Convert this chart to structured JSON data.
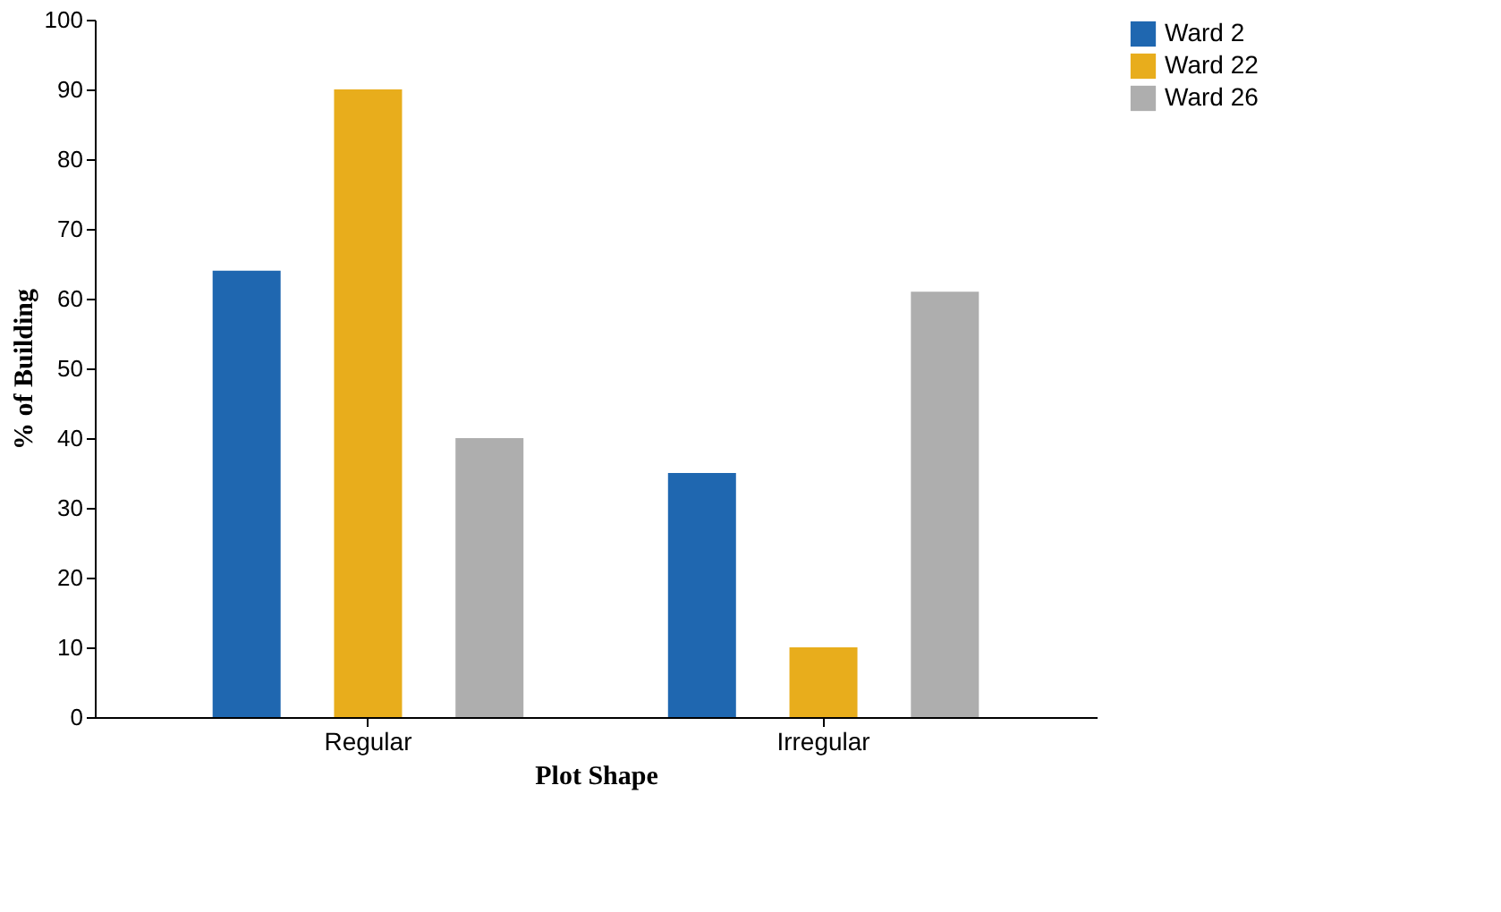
{
  "chart_data": {
    "type": "bar",
    "xlabel": "Plot Shape",
    "ylabel": "% of Building",
    "categories": [
      "Regular",
      "Irregular"
    ],
    "series": [
      {
        "name": "Ward 2",
        "color": "#1f67b0",
        "values": [
          64,
          35
        ]
      },
      {
        "name": "Ward 22",
        "color": "#e8ad1c",
        "values": [
          90,
          10
        ]
      },
      {
        "name": "Ward 26",
        "color": "#aeaeae",
        "values": [
          40,
          61
        ]
      }
    ],
    "ylim": [
      0,
      100
    ],
    "yticks": [
      0,
      10,
      20,
      30,
      40,
      50,
      60,
      70,
      80,
      90,
      100
    ],
    "grid": false,
    "legend": "right"
  }
}
